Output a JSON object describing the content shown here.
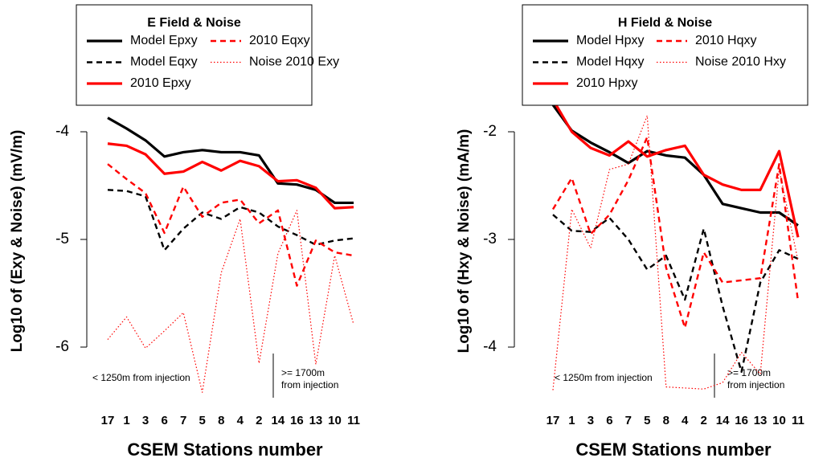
{
  "chart_data": [
    {
      "type": "line",
      "title": "E Field & Noise",
      "x_label": "CSEM Stations number",
      "y_label": "Log10 of (Exy & Noise) (mV/m)",
      "categories": [
        "17",
        "1",
        "3",
        "6",
        "7",
        "5",
        "8",
        "4",
        "2",
        "14",
        "16",
        "13",
        "10",
        "11"
      ],
      "ylim": [
        -6.5,
        -3.5
      ],
      "yticks": [
        -6,
        -5,
        -4
      ],
      "annotations": [
        "< 1250m from injection",
        ">= 1700m",
        "from injection"
      ],
      "series": [
        {
          "name": "Model Epxy",
          "color": "#000000",
          "linestyle": "solid",
          "values": [
            -3.87,
            -3.97,
            -4.08,
            -4.23,
            -4.19,
            -4.17,
            -4.19,
            -4.19,
            -4.22,
            -4.48,
            -4.49,
            -4.54,
            -4.66,
            -4.66
          ]
        },
        {
          "name": "Model Eqxy",
          "color": "#000000",
          "linestyle": "dashed",
          "values": [
            -4.54,
            -4.55,
            -4.6,
            -5.1,
            -4.9,
            -4.75,
            -4.81,
            -4.7,
            -4.75,
            -4.88,
            -4.96,
            -5.05,
            -5.01,
            -4.99
          ]
        },
        {
          "name": "2010 Epxy",
          "color": "#ff0000",
          "linestyle": "solid",
          "values": [
            -4.11,
            -4.13,
            -4.21,
            -4.39,
            -4.37,
            -4.28,
            -4.36,
            -4.27,
            -4.32,
            -4.46,
            -4.45,
            -4.52,
            -4.71,
            -4.7
          ]
        },
        {
          "name": "2010 Eqxy",
          "color": "#ff0000",
          "linestyle": "dashed",
          "values": [
            -4.3,
            -4.44,
            -4.57,
            -4.94,
            -4.51,
            -4.79,
            -4.66,
            -4.63,
            -4.85,
            -4.73,
            -5.43,
            -5.01,
            -5.12,
            -5.15
          ]
        },
        {
          "name": "Noise 2010 Exy",
          "color": "#ff0000",
          "linestyle": "dotted",
          "values": [
            -5.93,
            -5.72,
            -6.01,
            -5.85,
            -5.68,
            -6.42,
            -5.31,
            -4.81,
            -6.15,
            -5.13,
            -4.73,
            -6.16,
            -5.15,
            -5.79
          ]
        }
      ]
    },
    {
      "type": "line",
      "title": "H Field & Noise",
      "x_label": "CSEM Stations number",
      "y_label": "Log10 of (Hxy & Noise) (mA/m)",
      "categories": [
        "17",
        "1",
        "3",
        "6",
        "7",
        "5",
        "8",
        "4",
        "2",
        "14",
        "16",
        "13",
        "10",
        "11"
      ],
      "ylim": [
        -4.5,
        -1.5
      ],
      "yticks": [
        -4,
        -3,
        -2
      ],
      "annotations": [
        "< 1250m from injection",
        ">= 1700m",
        "from injection"
      ],
      "series": [
        {
          "name": "Model Hpxy",
          "color": "#000000",
          "linestyle": "solid",
          "values": [
            -1.75,
            -1.99,
            -2.1,
            -2.19,
            -2.29,
            -2.18,
            -2.22,
            -2.24,
            -2.4,
            -2.67,
            -2.71,
            -2.75,
            -2.75,
            -2.87
          ]
        },
        {
          "name": "Model Hqxy",
          "color": "#000000",
          "linestyle": "dashed",
          "values": [
            -2.77,
            -2.92,
            -2.93,
            -2.8,
            -3.0,
            -3.28,
            -3.15,
            -3.56,
            -2.9,
            -3.62,
            -4.23,
            -3.4,
            -3.1,
            -3.18
          ]
        },
        {
          "name": "2010 Hpxy",
          "color": "#ff0000",
          "linestyle": "solid",
          "values": [
            -1.7,
            -2.0,
            -2.15,
            -2.22,
            -2.09,
            -2.23,
            -2.17,
            -2.13,
            -2.4,
            -2.49,
            -2.54,
            -2.54,
            -2.18,
            -2.98
          ]
        },
        {
          "name": "2010 Hqxy",
          "color": "#ff0000",
          "linestyle": "dashed",
          "values": [
            -2.72,
            -2.43,
            -2.95,
            -2.77,
            -2.45,
            -2.05,
            -3.26,
            -3.82,
            -3.12,
            -3.4,
            -3.38,
            -3.36,
            -2.3,
            -3.57
          ]
        },
        {
          "name": "Noise 2010 Hxy",
          "color": "#ff0000",
          "linestyle": "dotted",
          "values": [
            -4.4,
            -2.72,
            -3.08,
            -2.35,
            -2.3,
            -1.85,
            -4.37,
            -4.38,
            -4.39,
            -4.33,
            -4.05,
            -4.25,
            -2.35,
            -3.2
          ]
        }
      ]
    }
  ]
}
